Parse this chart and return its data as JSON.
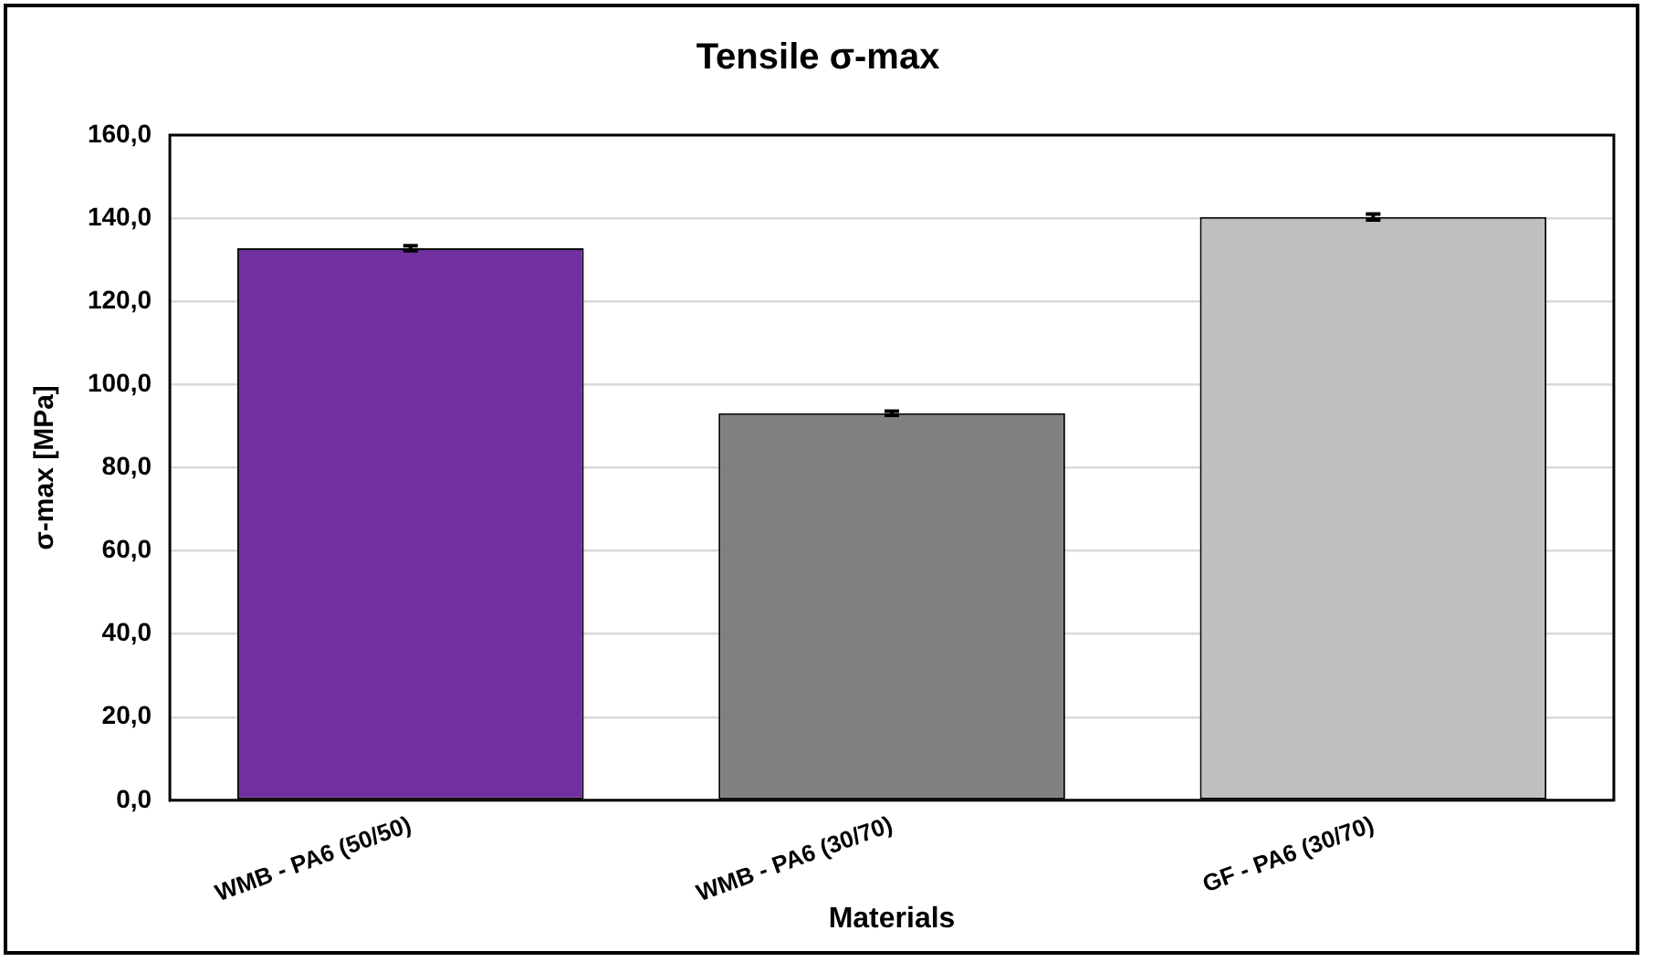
{
  "chart_data": {
    "type": "bar",
    "title": "Tensile σ-max",
    "xlabel": "Materials",
    "ylabel": "σ-max [MPa]",
    "categories": [
      "WMB - PA6 (50/50)",
      "WMB - PA6 (30/70)",
      "GF - PA6 (30/70)"
    ],
    "values": [
      132.8,
      93.1,
      140.3
    ],
    "colors": [
      "#7030a0",
      "#808080",
      "#bfbfbf"
    ],
    "errors": [
      0.6,
      0.5,
      0.7
    ],
    "ylim": [
      0,
      160
    ],
    "yticks": [
      {
        "value": 0,
        "label": "0,0"
      },
      {
        "value": 20,
        "label": "20,0"
      },
      {
        "value": 40,
        "label": "40,0"
      },
      {
        "value": 60,
        "label": "60,0"
      },
      {
        "value": 80,
        "label": "80,0"
      },
      {
        "value": 100,
        "label": "100,0"
      },
      {
        "value": 120,
        "label": "120,0"
      },
      {
        "value": 140,
        "label": "140,0"
      },
      {
        "value": 160,
        "label": "160,0"
      }
    ],
    "grid": "y",
    "legend": false
  }
}
